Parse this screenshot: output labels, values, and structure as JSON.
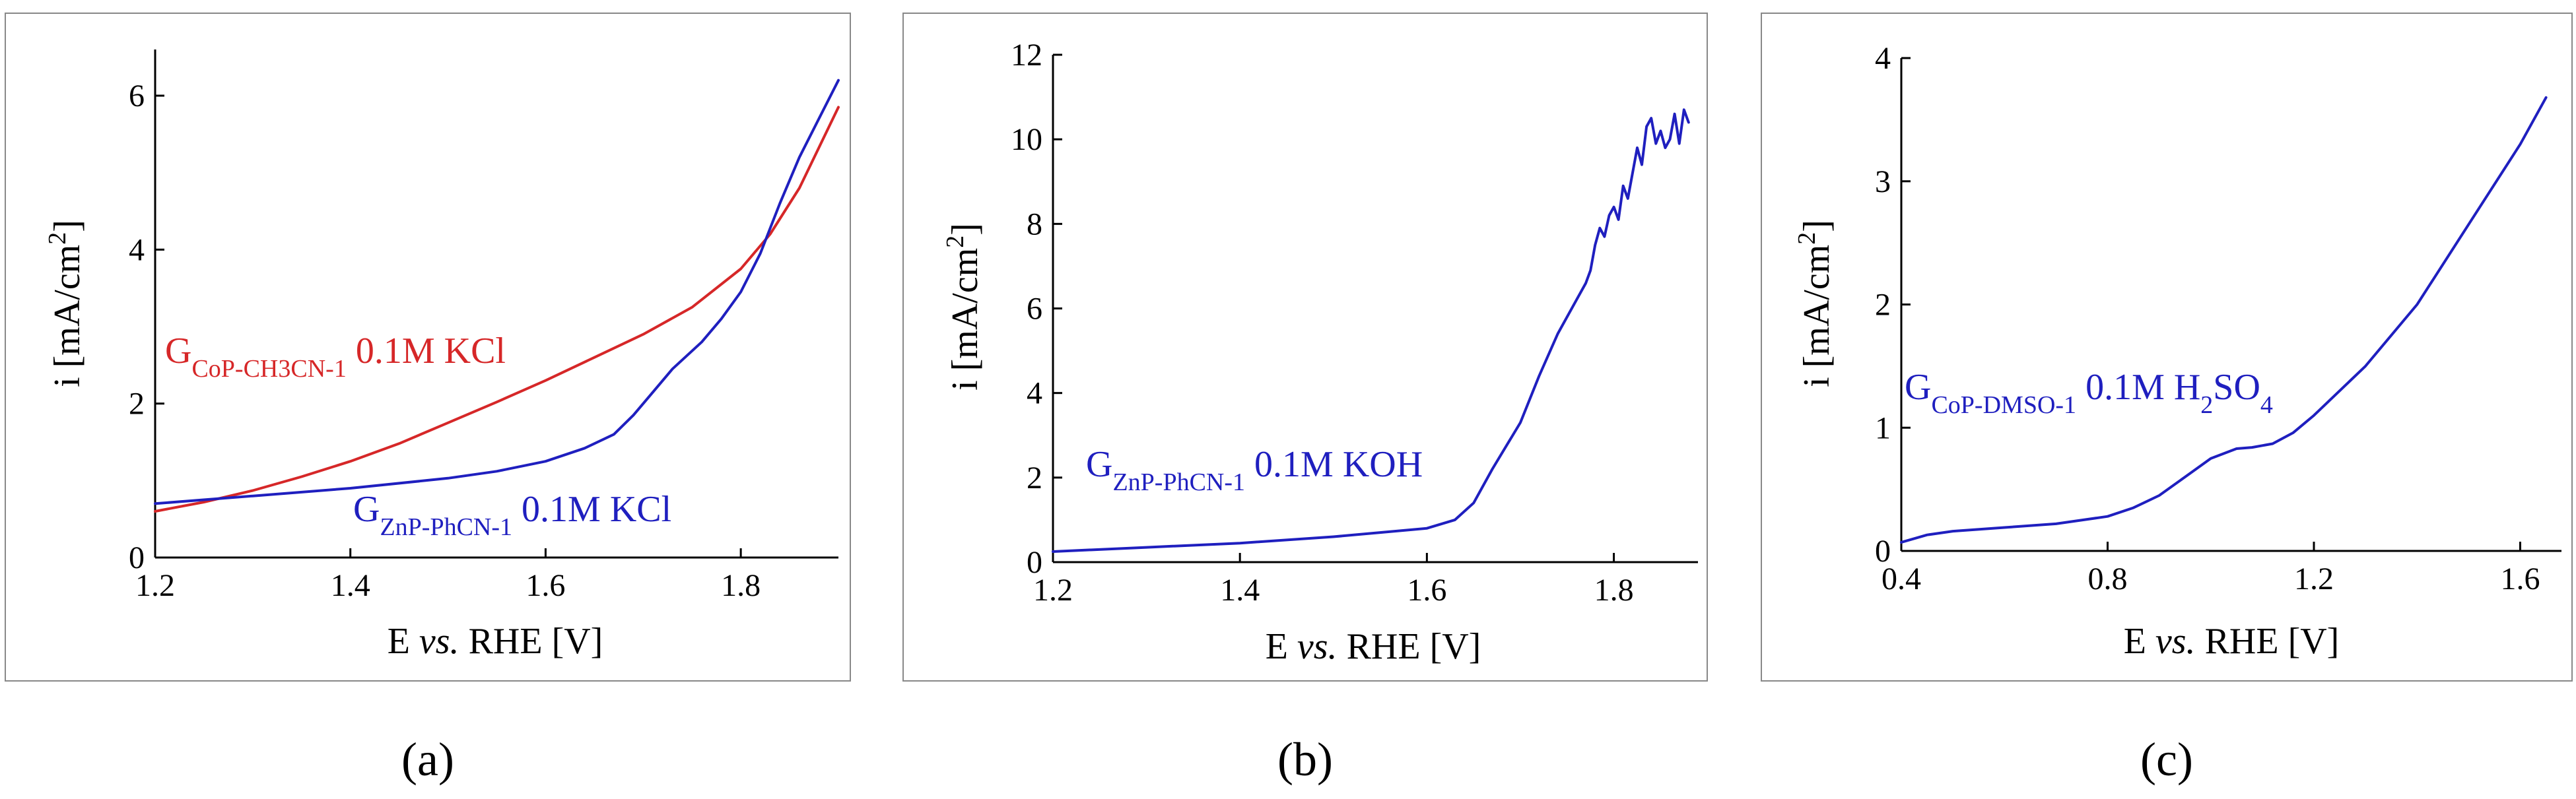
{
  "figure": {
    "panel_labels": [
      "(a)",
      "(b)",
      "(c)"
    ]
  },
  "chart_data": [
    {
      "type": "line",
      "panel": "a",
      "xlabel_main": "E ",
      "xlabel_italic": "vs.",
      "xlabel_tail": " RHE [V]",
      "ylabel": "i [mA/cm",
      "ylabel_sup": "2",
      "ylabel_tail": "]",
      "xlim": [
        1.2,
        1.9
      ],
      "ylim": [
        0,
        6.6
      ],
      "xticks": [
        1.2,
        1.4,
        1.6,
        1.8
      ],
      "xtick_labels": [
        "1.2",
        "1.4",
        "1.6",
        "1.8"
      ],
      "yticks": [
        0,
        2,
        4,
        6
      ],
      "ytick_labels": [
        "0",
        "2",
        "4",
        "6"
      ],
      "colors": {
        "red": "#d62728",
        "blue": "#1f1fbf"
      },
      "series": [
        {
          "name": "GCoP-CH3CN-1 0.1M KCl",
          "label_main": "G",
          "label_sub": "CoP-CH3CN-1",
          "label_tail": " 0.1M KCl",
          "color": "#d62728",
          "x": [
            1.2,
            1.25,
            1.3,
            1.35,
            1.4,
            1.45,
            1.5,
            1.55,
            1.6,
            1.65,
            1.7,
            1.75,
            1.8,
            1.83,
            1.86,
            1.9
          ],
          "y": [
            0.6,
            0.72,
            0.87,
            1.05,
            1.25,
            1.48,
            1.75,
            2.02,
            2.3,
            2.6,
            2.9,
            3.25,
            3.75,
            4.2,
            4.8,
            5.85
          ]
        },
        {
          "name": "GZnP-PhCN-1 0.1M KCl",
          "label_main": "G",
          "label_sub": "ZnP-PhCN-1",
          "label_tail": "  0.1M KCl",
          "color": "#1f1fbf",
          "x": [
            1.2,
            1.3,
            1.4,
            1.5,
            1.55,
            1.6,
            1.64,
            1.67,
            1.69,
            1.71,
            1.73,
            1.76,
            1.78,
            1.8,
            1.82,
            1.84,
            1.86,
            1.88,
            1.9
          ],
          "y": [
            0.7,
            0.8,
            0.9,
            1.03,
            1.12,
            1.25,
            1.42,
            1.6,
            1.85,
            2.15,
            2.45,
            2.8,
            3.1,
            3.45,
            3.95,
            4.6,
            5.2,
            5.7,
            6.2
          ]
        }
      ]
    },
    {
      "type": "line",
      "panel": "b",
      "xlabel_main": "E ",
      "xlabel_italic": "vs.",
      "xlabel_tail": " RHE [V]",
      "ylabel": "i [mA/cm",
      "ylabel_sup": "2",
      "ylabel_tail": "]",
      "xlim": [
        1.2,
        1.89
      ],
      "ylim": [
        0,
        12
      ],
      "xticks": [
        1.2,
        1.4,
        1.6,
        1.8
      ],
      "xtick_labels": [
        "1.2",
        "1.4",
        "1.6",
        "1.8"
      ],
      "yticks": [
        0,
        2,
        4,
        6,
        8,
        10,
        12
      ],
      "ytick_labels": [
        "0",
        "2",
        "4",
        "6",
        "8",
        "10",
        "12"
      ],
      "series": [
        {
          "name": "GZnP-PhCN-1 0.1M KOH",
          "label_main": "G",
          "label_sub": "ZnP-PhCN-1",
          "label_tail": " 0.1M KOH",
          "color": "#1f1fbf",
          "x": [
            1.2,
            1.3,
            1.4,
            1.5,
            1.55,
            1.6,
            1.63,
            1.65,
            1.67,
            1.7,
            1.72,
            1.74,
            1.76,
            1.77,
            1.775,
            1.78,
            1.785,
            1.79,
            1.795,
            1.8,
            1.805,
            1.81,
            1.815,
            1.82,
            1.825,
            1.83,
            1.835,
            1.84,
            1.845,
            1.85,
            1.855,
            1.86,
            1.865,
            1.87,
            1.875,
            1.88
          ],
          "y": [
            0.25,
            0.35,
            0.45,
            0.6,
            0.7,
            0.8,
            1.0,
            1.4,
            2.2,
            3.3,
            4.4,
            5.4,
            6.2,
            6.6,
            6.9,
            7.5,
            7.9,
            7.7,
            8.2,
            8.4,
            8.1,
            8.9,
            8.6,
            9.2,
            9.8,
            9.4,
            10.3,
            10.5,
            9.9,
            10.2,
            9.8,
            10.0,
            10.6,
            9.9,
            10.7,
            10.4
          ]
        }
      ]
    },
    {
      "type": "line",
      "panel": "c",
      "xlabel_main": "E ",
      "xlabel_italic": "vs.",
      "xlabel_tail": " RHE [V]",
      "ylabel": "i [mA/cm",
      "ylabel_sup": "2",
      "ylabel_tail": "]",
      "xlim": [
        0.4,
        1.68
      ],
      "ylim": [
        0,
        4
      ],
      "xticks": [
        0.4,
        0.8,
        1.2,
        1.6
      ],
      "xtick_labels": [
        "0.4",
        "0.8",
        "1.2",
        "1.6"
      ],
      "yticks": [
        0,
        1,
        2,
        3,
        4
      ],
      "ytick_labels": [
        "0",
        "1",
        "2",
        "3",
        "4"
      ],
      "series": [
        {
          "name": "GCoP-DMSO-1 0.1M H2SO4",
          "label_main": "G",
          "label_sub": "CoP-DMSO-1",
          "label_tail": " 0.1M H",
          "label_sub2": "2",
          "label_tail2": "SO",
          "label_sub3": "4",
          "color": "#1f1fbf",
          "x": [
            0.4,
            0.45,
            0.5,
            0.6,
            0.7,
            0.8,
            0.85,
            0.9,
            0.95,
            1.0,
            1.05,
            1.08,
            1.12,
            1.16,
            1.2,
            1.3,
            1.4,
            1.5,
            1.6,
            1.65
          ],
          "y": [
            0.07,
            0.13,
            0.16,
            0.19,
            0.22,
            0.28,
            0.35,
            0.45,
            0.6,
            0.75,
            0.83,
            0.84,
            0.87,
            0.96,
            1.1,
            1.5,
            2.0,
            2.65,
            3.3,
            3.68
          ]
        }
      ]
    }
  ]
}
